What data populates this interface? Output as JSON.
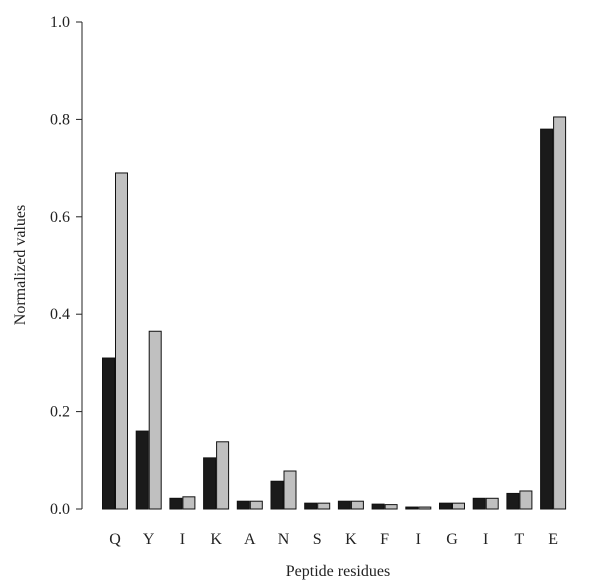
{
  "chart_data": {
    "type": "bar",
    "title": "",
    "xlabel": "Peptide residues",
    "ylabel": "Normalized values",
    "ylim": [
      0,
      1.0
    ],
    "yticks": [
      "0.0",
      "0.2",
      "0.4",
      "0.6",
      "0.8",
      "1.0"
    ],
    "categories": [
      "Q",
      "Y",
      "I",
      "K",
      "A",
      "N",
      "S",
      "K",
      "F",
      "I",
      "G",
      "I",
      "T",
      "E"
    ],
    "series": [
      {
        "color": "#1a1a1a",
        "values": [
          0.31,
          0.16,
          0.022,
          0.105,
          0.016,
          0.057,
          0.012,
          0.016,
          0.01,
          0.004,
          0.012,
          0.022,
          0.032,
          0.78
        ]
      },
      {
        "color": "#c0c0c0",
        "values": [
          0.69,
          0.365,
          0.025,
          0.138,
          0.016,
          0.078,
          0.012,
          0.016,
          0.009,
          0.004,
          0.012,
          0.022,
          0.037,
          0.805
        ]
      }
    ],
    "grid": false,
    "legend": "none"
  }
}
